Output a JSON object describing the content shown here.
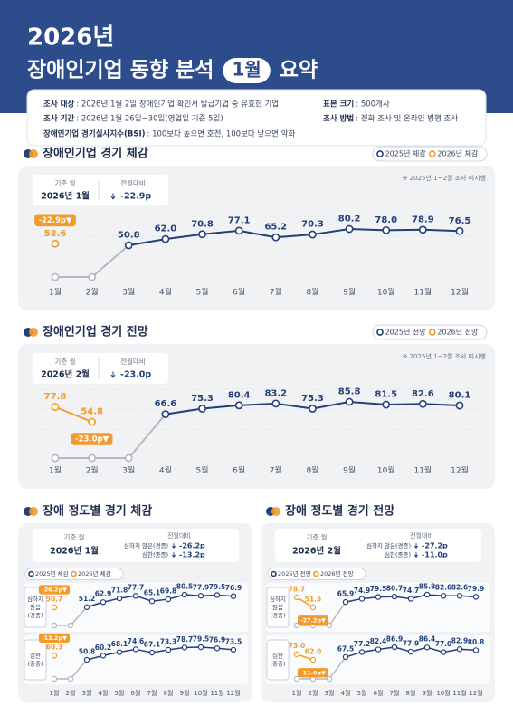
{
  "header": {
    "year": "2026년",
    "title_pre": "장애인기업 동향 분석",
    "month": "1월",
    "title_post": "요약"
  },
  "info": [
    {
      "label": "조사 대상",
      "value": ": 2026년 1월 2일 장애인기업 확인서 발급기업 중 유효한 기업"
    },
    {
      "label": "표본 크기",
      "value": ": 500개사"
    },
    {
      "label": "조사 기간",
      "value": ": 2026년 1월 26일~30일(영업일 기준 5일)"
    },
    {
      "label": "조사 방법",
      "value": ": 전화 조사 및 온라인 병행 조사"
    },
    {
      "label": "장애인기업 경기실사지수(BSI)",
      "value": ": 100보다 높으면 호전, 100보다 낮으면 악화"
    }
  ],
  "chart_data": [
    {
      "type": "line",
      "title": "장애인기업 경기 체감",
      "note": "※ 2025년 1~2월 조사 미시행",
      "ref_label": "기준 월",
      "ref_value": "2026년 1월",
      "change_label": "전월대비",
      "change": "-22.9p",
      "badge": "-22.9p▼",
      "categories": [
        "1월",
        "2월",
        "3월",
        "4월",
        "5월",
        "6월",
        "7월",
        "8월",
        "9월",
        "10월",
        "11월",
        "12월"
      ],
      "series": [
        {
          "name": "2025년 체감",
          "color": "#23407a",
          "values": [
            null,
            null,
            50.8,
            62.0,
            70.8,
            77.1,
            65.2,
            70.3,
            80.2,
            78.0,
            78.9,
            76.5
          ],
          "value_labels": [
            null,
            null,
            "50.8",
            "62.0",
            "70.8",
            "77.1",
            "65.2",
            "70.3",
            "80.2",
            "78.0",
            "78.9",
            "76.5"
          ]
        },
        {
          "name": "2026년 체감",
          "color": "#f39a2b",
          "values": [
            53.6,
            null,
            null,
            null,
            null,
            null,
            null,
            null,
            null,
            null,
            null,
            null
          ],
          "value_labels": [
            "53.6",
            null,
            null,
            null,
            null,
            null,
            null,
            null,
            null,
            null,
            null,
            null
          ]
        }
      ]
    },
    {
      "type": "line",
      "title": "장애인기업 경기 전망",
      "note": "※ 2025년 1~2월 조사 미시행",
      "ref_label": "기준 월",
      "ref_value": "2026년 2월",
      "change_label": "전월대비",
      "change": "-23.0p",
      "badge": "-23.0p▼",
      "categories": [
        "1월",
        "2월",
        "3월",
        "4월",
        "5월",
        "6월",
        "7월",
        "8월",
        "9월",
        "10월",
        "11월",
        "12월"
      ],
      "series": [
        {
          "name": "2025년 전망",
          "color": "#23407a",
          "values": [
            null,
            null,
            null,
            66.6,
            75.3,
            80.4,
            83.2,
            75.3,
            85.8,
            81.5,
            82.6,
            80.1
          ],
          "value_labels": [
            null,
            null,
            null,
            "66.6",
            "75.3",
            "80.4",
            "83.2",
            "75.3",
            "85.8",
            "81.5",
            "82.6",
            "80.1"
          ]
        },
        {
          "name": "2026년 전망",
          "color": "#f39a2b",
          "values": [
            77.8,
            54.8,
            null,
            null,
            null,
            null,
            null,
            null,
            null,
            null,
            null,
            null
          ],
          "value_labels": [
            "77.8",
            "54.8",
            null,
            null,
            null,
            null,
            null,
            null,
            null,
            null,
            null,
            null
          ]
        }
      ]
    },
    {
      "type": "line",
      "title": "장애 정도별 경기 체감",
      "ref_label": "기준 월",
      "ref_value": "2026년 1월",
      "change_label": "전월대비",
      "categories": [
        "1월",
        "2월",
        "3월",
        "4월",
        "5월",
        "6월",
        "7월",
        "8월",
        "9월",
        "10월",
        "11월",
        "12월"
      ],
      "series": [
        {
          "name": "2025년 체감",
          "color": "#23407a"
        },
        {
          "name": "2026년 체감",
          "color": "#f39a2b"
        }
      ],
      "panels": [
        {
          "label": [
            "심하지",
            "않음",
            "(경증)"
          ],
          "change_label": "심하지 않은(경증)",
          "change": "-26.2p",
          "badge": "-26.2p▼",
          "data": [
            {
              "values": [
                null,
                null,
                51.2,
                62.9,
                71.8,
                77.7,
                65.1,
                69.8,
                80.5,
                77.9,
                79.5,
                76.9
              ],
              "value_labels": [
                null,
                null,
                "51.2",
                "62.9",
                "71.8",
                "77.7",
                "65.1",
                "69.8",
                "80.5",
                "77.9",
                "79.5",
                "76.9"
              ]
            },
            {
              "values": [
                50.7,
                null,
                null,
                null,
                null,
                null,
                null,
                null,
                null,
                null,
                null,
                null
              ],
              "value_labels": [
                "50.7",
                null,
                null,
                null,
                null,
                null,
                null,
                null,
                null,
                null,
                null,
                null
              ]
            }
          ]
        },
        {
          "label": [
            "심한",
            "(중증)"
          ],
          "change_label": "심한(중증)",
          "change": "-13.2p",
          "badge": "-13.2p▼",
          "data": [
            {
              "values": [
                null,
                null,
                50.8,
                60.2,
                68.1,
                74.6,
                67.1,
                73.3,
                78.7,
                79.5,
                76.9,
                73.5
              ],
              "value_labels": [
                null,
                null,
                "50.8",
                "60.2",
                "68.1",
                "74.6",
                "67.1",
                "73.3",
                "78.7",
                "79.5",
                "76.9",
                "73.5"
              ]
            },
            {
              "values": [
                60.3,
                null,
                null,
                null,
                null,
                null,
                null,
                null,
                null,
                null,
                null,
                null
              ],
              "value_labels": [
                "60.3",
                null,
                null,
                null,
                null,
                null,
                null,
                null,
                null,
                null,
                null,
                null
              ]
            }
          ]
        }
      ]
    },
    {
      "type": "line",
      "title": "장애 정도별 경기 전망",
      "ref_label": "기준 월",
      "ref_value": "2026년 2월",
      "change_label": "전월대비",
      "categories": [
        "1월",
        "2월",
        "3월",
        "4월",
        "5월",
        "6월",
        "7월",
        "8월",
        "9월",
        "10월",
        "11월",
        "12월"
      ],
      "series": [
        {
          "name": "2025년 전망",
          "color": "#23407a"
        },
        {
          "name": "2026년 전망",
          "color": "#f39a2b"
        }
      ],
      "panels": [
        {
          "label": [
            "심하지",
            "않음",
            "(경증)"
          ],
          "change_label": "심하지 않은(경증)",
          "change": "-27.2p",
          "badge": "-27.2p▼",
          "data": [
            {
              "values": [
                null,
                null,
                null,
                65.9,
                74.9,
                79.5,
                80.7,
                74.7,
                85.8,
                82.6,
                82.6,
                79.9
              ],
              "value_labels": [
                null,
                null,
                null,
                "65.9",
                "74.9",
                "79.5",
                "80.7",
                "74.7",
                "85.8",
                "82.6",
                "82.6",
                "79.9"
              ]
            },
            {
              "values": [
                78.7,
                51.5,
                null,
                null,
                null,
                null,
                null,
                null,
                null,
                null,
                null,
                null
              ],
              "value_labels": [
                "78.7",
                "51.5",
                null,
                null,
                null,
                null,
                null,
                null,
                null,
                null,
                null,
                null
              ]
            }
          ]
        },
        {
          "label": [
            "심한",
            "(중증)"
          ],
          "change_label": "심한(중증)",
          "change": "-11.0p",
          "badge": "-11.0p▼",
          "data": [
            {
              "values": [
                null,
                null,
                null,
                67.5,
                77.2,
                82.4,
                86.9,
                77.9,
                86.4,
                77.0,
                82.9,
                80.8
              ],
              "value_labels": [
                null,
                null,
                null,
                "67.5",
                "77.2",
                "82.4",
                "86.9",
                "77.9",
                "86.4",
                "77.0",
                "82.9",
                "80.8"
              ]
            },
            {
              "values": [
                73.0,
                62.0,
                null,
                null,
                null,
                null,
                null,
                null,
                null,
                null,
                null,
                null
              ],
              "value_labels": [
                "73.0",
                "62.0",
                null,
                null,
                null,
                null,
                null,
                null,
                null,
                null,
                null,
                null
              ]
            }
          ]
        }
      ]
    }
  ]
}
